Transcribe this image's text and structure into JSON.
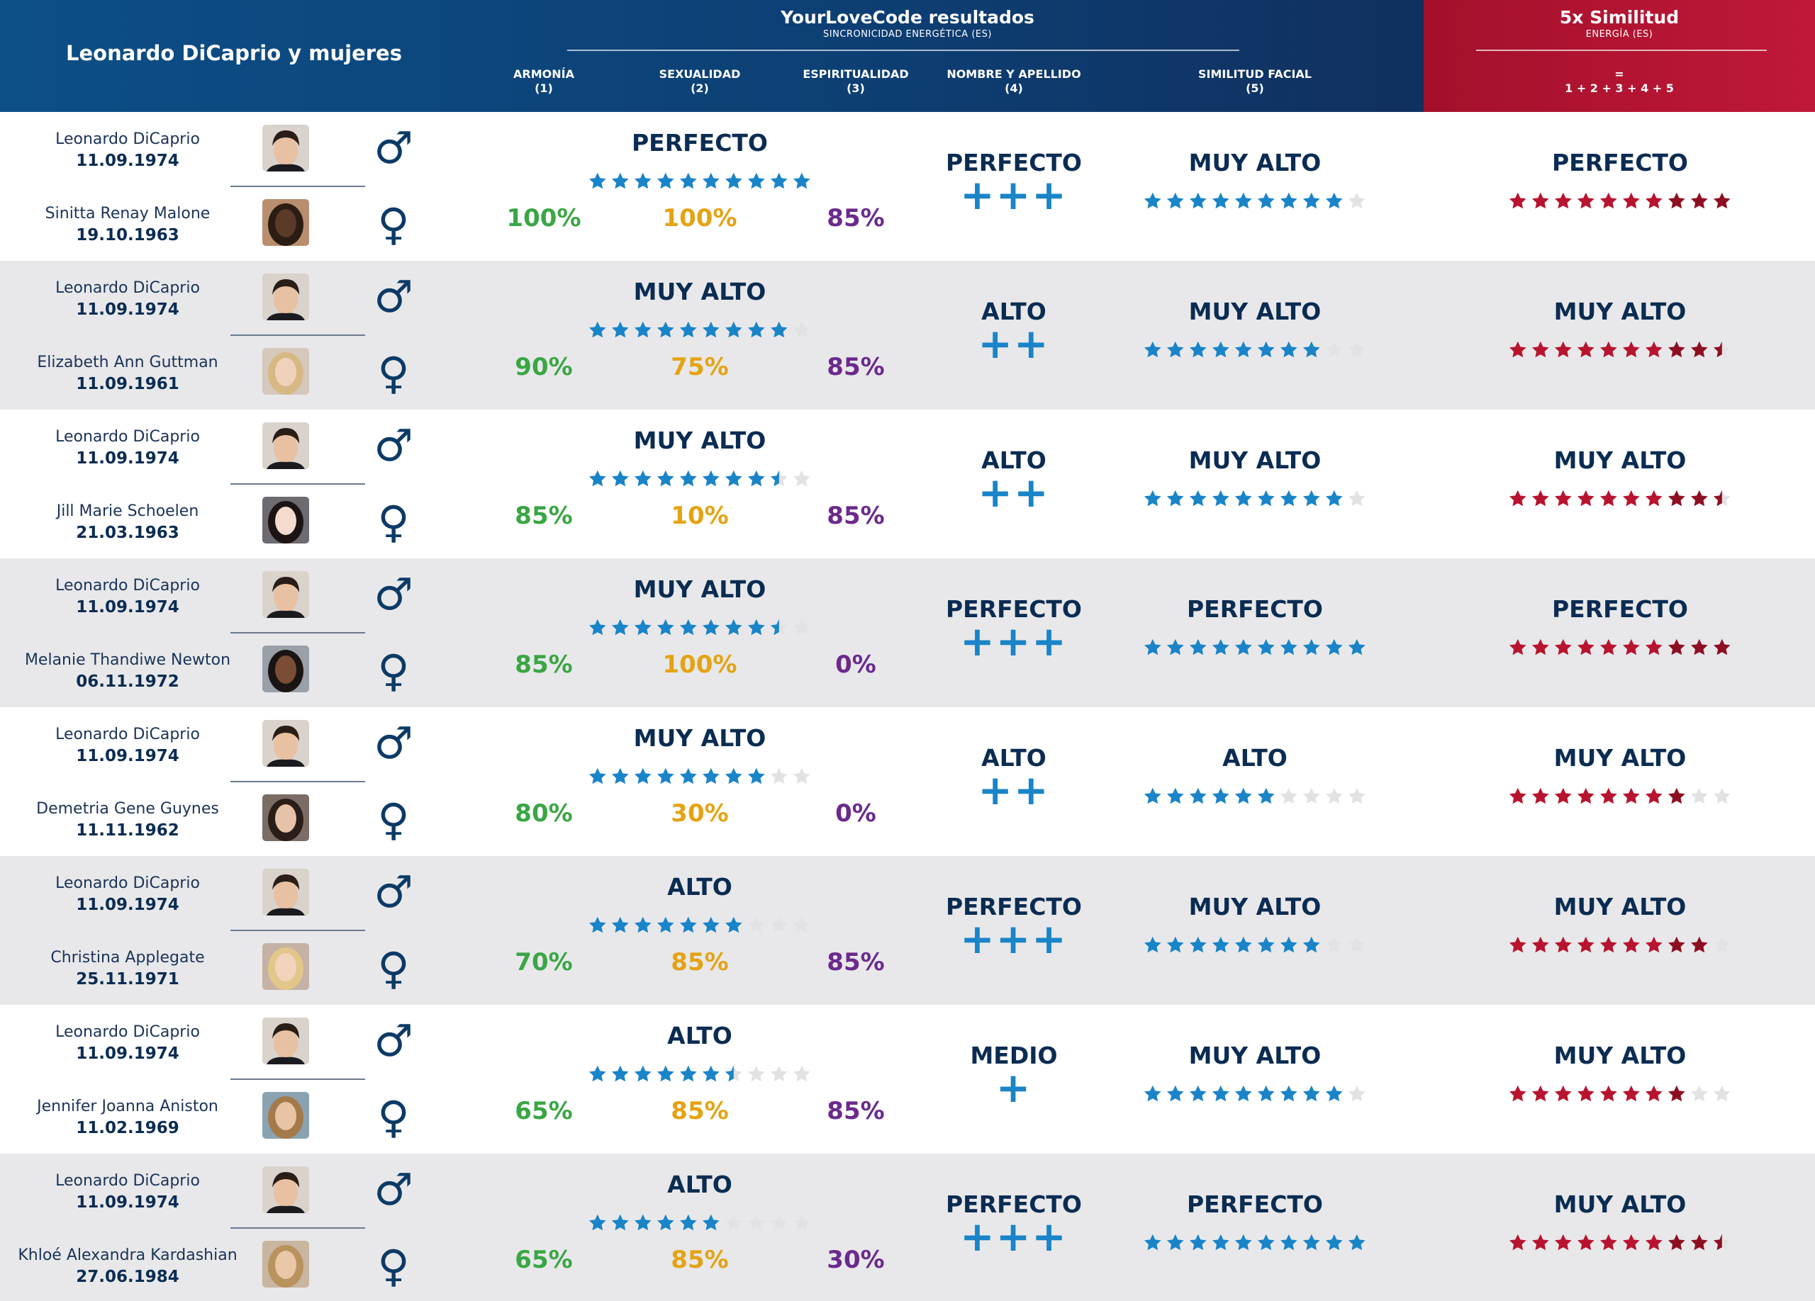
{
  "header": {
    "title_left": "Leonardo DiCaprio y mujeres",
    "title_center": "YourLoveCode resultados",
    "subtitle_center": "SINCRONICIDAD ENERGÉTICA (ES)",
    "title_right": "5x Similitud",
    "subtitle_right": "ENERGÍA (ES)",
    "formula_eq": "=",
    "formula": "1 + 2 + 3 + 4 + 5",
    "columns": [
      {
        "label": "ARMONÍA",
        "num": "(1)"
      },
      {
        "label": "SEXUALIDAD",
        "num": "(2)"
      },
      {
        "label": "ESPIRITUALIDAD",
        "num": "(3)"
      },
      {
        "label": "NOMBRE Y APELLIDO",
        "num": "(4)"
      },
      {
        "label": "SIMILITUD FACIAL",
        "num": "(5)"
      }
    ]
  },
  "colors": {
    "header_blue": "#0d3f74",
    "header_red": "#b31431",
    "armonia": "#3aa644",
    "sexualidad": "#e4a312",
    "espiritualidad": "#6b2a8c",
    "blue_star": "#1a84c8",
    "red_star": "#b8142f",
    "empty_star": "#e2e2e4"
  },
  "male_symbol": "♂",
  "female_symbol": "♀",
  "rows": [
    {
      "man_name": "Leonardo DiCaprio",
      "man_date": "11.09.1974",
      "woman_name": "Sinitta Renay Malone",
      "woman_date": "19.10.1963",
      "armonia": "100%",
      "sexualidad": "100%",
      "espiritualidad": "85%",
      "sexual_rating": "PERFECTO",
      "sexual_stars": 10,
      "name_rating": "PERFECTO",
      "name_plus": "+++",
      "facial_rating": "MUY ALTO",
      "facial_stars": 9,
      "total_rating": "PERFECTO",
      "total_stars": 10
    },
    {
      "man_name": "Leonardo DiCaprio",
      "man_date": "11.09.1974",
      "woman_name": "Elizabeth Ann Guttman",
      "woman_date": "11.09.1961",
      "armonia": "90%",
      "sexualidad": "75%",
      "espiritualidad": "85%",
      "sexual_rating": "MUY ALTO",
      "sexual_stars": 9,
      "name_rating": "ALTO",
      "name_plus": "++",
      "facial_rating": "MUY ALTO",
      "facial_stars": 8,
      "total_rating": "MUY ALTO",
      "total_stars": 9.5
    },
    {
      "man_name": "Leonardo DiCaprio",
      "man_date": "11.09.1974",
      "woman_name": "Jill Marie Schoelen",
      "woman_date": "21.03.1963",
      "armonia": "85%",
      "sexualidad": "10%",
      "espiritualidad": "85%",
      "sexual_rating": "MUY ALTO",
      "sexual_stars": 8.5,
      "name_rating": "ALTO",
      "name_plus": "++",
      "facial_rating": "MUY ALTO",
      "facial_stars": 9,
      "total_rating": "MUY ALTO",
      "total_stars": 9.5
    },
    {
      "man_name": "Leonardo DiCaprio",
      "man_date": "11.09.1974",
      "woman_name": "Melanie Thandiwe Newton",
      "woman_date": "06.11.1972",
      "armonia": "85%",
      "sexualidad": "100%",
      "espiritualidad": "0%",
      "sexual_rating": "MUY ALTO",
      "sexual_stars": 8.5,
      "name_rating": "PERFECTO",
      "name_plus": "+++",
      "facial_rating": "PERFECTO",
      "facial_stars": 10,
      "total_rating": "PERFECTO",
      "total_stars": 10
    },
    {
      "man_name": "Leonardo DiCaprio",
      "man_date": "11.09.1974",
      "woman_name": "Demetria Gene Guynes",
      "woman_date": "11.11.1962",
      "armonia": "80%",
      "sexualidad": "30%",
      "espiritualidad": "0%",
      "sexual_rating": "MUY ALTO",
      "sexual_stars": 8,
      "name_rating": "ALTO",
      "name_plus": "++",
      "facial_rating": "ALTO",
      "facial_stars": 6,
      "total_rating": "MUY ALTO",
      "total_stars": 8
    },
    {
      "man_name": "Leonardo DiCaprio",
      "man_date": "11.09.1974",
      "woman_name": "Christina Applegate",
      "woman_date": "25.11.1971",
      "armonia": "70%",
      "sexualidad": "85%",
      "espiritualidad": "85%",
      "sexual_rating": "ALTO",
      "sexual_stars": 7,
      "name_rating": "PERFECTO",
      "name_plus": "+++",
      "facial_rating": "MUY ALTO",
      "facial_stars": 8,
      "total_rating": "MUY ALTO",
      "total_stars": 9
    },
    {
      "man_name": "Leonardo DiCaprio",
      "man_date": "11.09.1974",
      "woman_name": "Jennifer Joanna Aniston",
      "woman_date": "11.02.1969",
      "armonia": "65%",
      "sexualidad": "85%",
      "espiritualidad": "85%",
      "sexual_rating": "ALTO",
      "sexual_stars": 6.5,
      "name_rating": "MEDIO",
      "name_plus": "+",
      "facial_rating": "MUY ALTO",
      "facial_stars": 9,
      "total_rating": "MUY ALTO",
      "total_stars": 8
    },
    {
      "man_name": "Leonardo DiCaprio",
      "man_date": "11.09.1974",
      "woman_name": "Khloé Alexandra Kardashian",
      "woman_date": "27.06.1984",
      "armonia": "65%",
      "sexualidad": "85%",
      "espiritualidad": "30%",
      "sexual_rating": "ALTO",
      "sexual_stars": 6,
      "name_rating": "PERFECTO",
      "name_plus": "+++",
      "facial_rating": "PERFECTO",
      "facial_stars": 10,
      "total_rating": "MUY ALTO",
      "total_stars": 9.5
    }
  ]
}
